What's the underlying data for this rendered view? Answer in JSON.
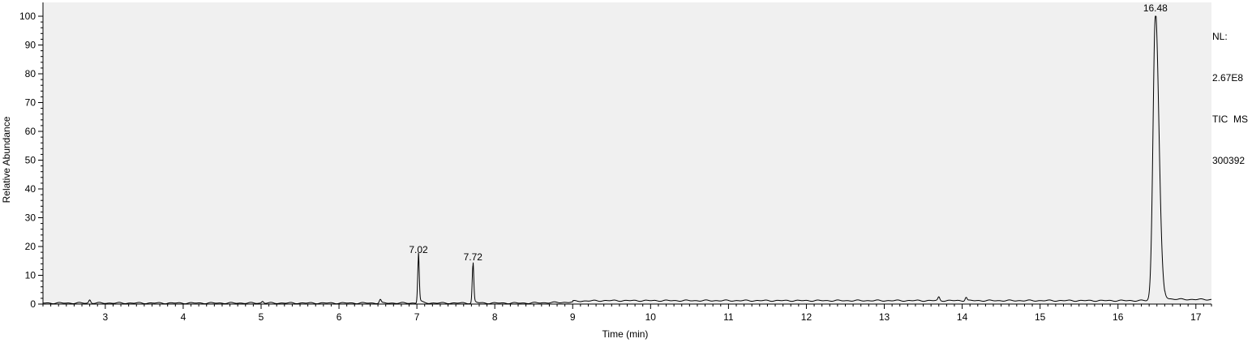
{
  "chart_data": {
    "type": "line",
    "title": "",
    "xlabel": "Time (min)",
    "ylabel": "Relative Abundance",
    "xlim": [
      2.2,
      17.2
    ],
    "ylim": [
      0,
      100
    ],
    "x_ticks": [
      3,
      4,
      5,
      6,
      7,
      8,
      9,
      10,
      11,
      12,
      13,
      14,
      15,
      16,
      17
    ],
    "y_ticks": [
      0,
      10,
      20,
      30,
      40,
      50,
      60,
      70,
      80,
      90,
      100
    ],
    "grid": false,
    "background": "#f0f0f0",
    "line_color": "#000000",
    "peaks": [
      {
        "label": "7.02",
        "x": 7.02,
        "y": 16
      },
      {
        "label": "7.72",
        "x": 7.72,
        "y": 13.5
      },
      {
        "label": "16.48",
        "x": 16.48,
        "y": 100
      }
    ],
    "minor_peaks": [
      {
        "x": 2.8,
        "y": 1.6
      },
      {
        "x": 5.02,
        "y": 1.1
      },
      {
        "x": 6.53,
        "y": 1.7
      },
      {
        "x": 13.7,
        "y": 1.7
      },
      {
        "x": 14.05,
        "y": 1.7
      }
    ]
  },
  "info": {
    "nl_label": "NL:",
    "nl_value": "2.67E8",
    "trace_type": "TIC  MS",
    "file_id": "300392"
  }
}
